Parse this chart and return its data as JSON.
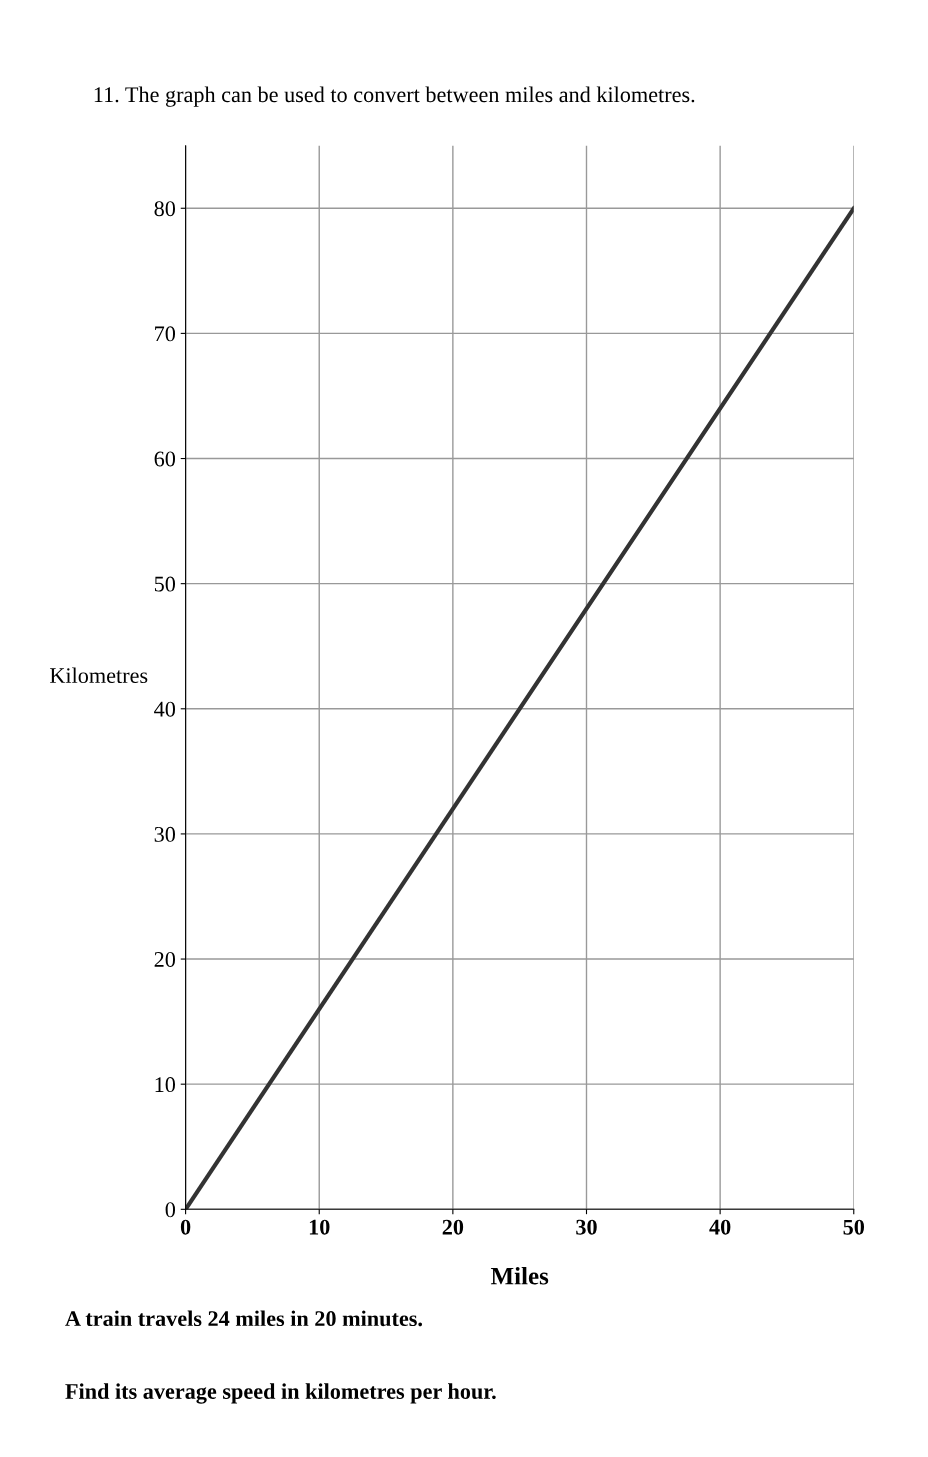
{
  "chart_data": {
    "type": "line",
    "title": "11. The graph can be used to convert between miles and kilometres.",
    "xlabel": "Miles",
    "ylabel": "Kilometres",
    "x": [
      0,
      50
    ],
    "series": [
      {
        "color": "#333333",
        "values": [
          0,
          80
        ]
      }
    ],
    "xlim": [
      0,
      50
    ],
    "ylim": [
      0,
      85
    ],
    "xticks": [
      0,
      10,
      20,
      30,
      40,
      50
    ],
    "yticks": [
      0,
      10,
      20,
      30,
      40,
      50,
      60,
      70,
      80
    ],
    "grid": true,
    "marker": "none",
    "line_style": "solid",
    "annotations": [
      "A train travels 24 miles in 20 minutes.",
      "Find its average speed in kilometres per hour."
    ]
  }
}
